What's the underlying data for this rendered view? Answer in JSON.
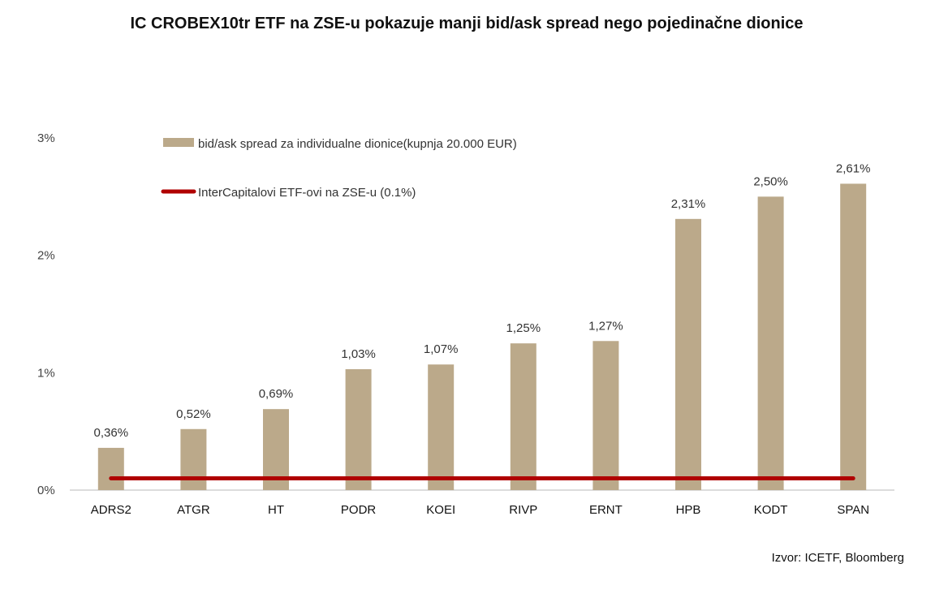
{
  "chart_data": {
    "type": "bar",
    "title": "IC CROBEX10tr ETF na ZSE-u pokazuje manji bid/ask spread nego pojedinačne dionice",
    "categories": [
      "ADRS2",
      "ATGR",
      "HT",
      "PODR",
      "KOEI",
      "RIVP",
      "ERNT",
      "HPB",
      "KODT",
      "SPAN"
    ],
    "series": [
      {
        "name": "bid/ask spread za individualne dionice(kupnja 20.000 EUR)",
        "type": "bar",
        "color": "#BBA98A",
        "values": [
          0.36,
          0.52,
          0.69,
          1.03,
          1.07,
          1.25,
          1.27,
          2.31,
          2.5,
          2.61
        ],
        "labels": [
          "0,36%",
          "0,52%",
          "0,69%",
          "1,03%",
          "1,07%",
          "1,25%",
          "1,27%",
          "2,31%",
          "2,50%",
          "2,61%"
        ]
      },
      {
        "name": "InterCapitalovi ETF-ovi na ZSE-u (0.1%)",
        "type": "line",
        "color": "#B00000",
        "values": [
          0.1,
          0.1,
          0.1,
          0.1,
          0.1,
          0.1,
          0.1,
          0.1,
          0.1,
          0.1
        ]
      }
    ],
    "ylim": [
      0,
      3
    ],
    "yticks": [
      0,
      1,
      2,
      3
    ],
    "ytick_labels": [
      "0%",
      "1%",
      "2%",
      "3%"
    ],
    "xlabel": "",
    "ylabel": "",
    "grid": false,
    "legend_position": "top-left"
  },
  "source_note": "Izvor: ICETF, Bloomberg"
}
